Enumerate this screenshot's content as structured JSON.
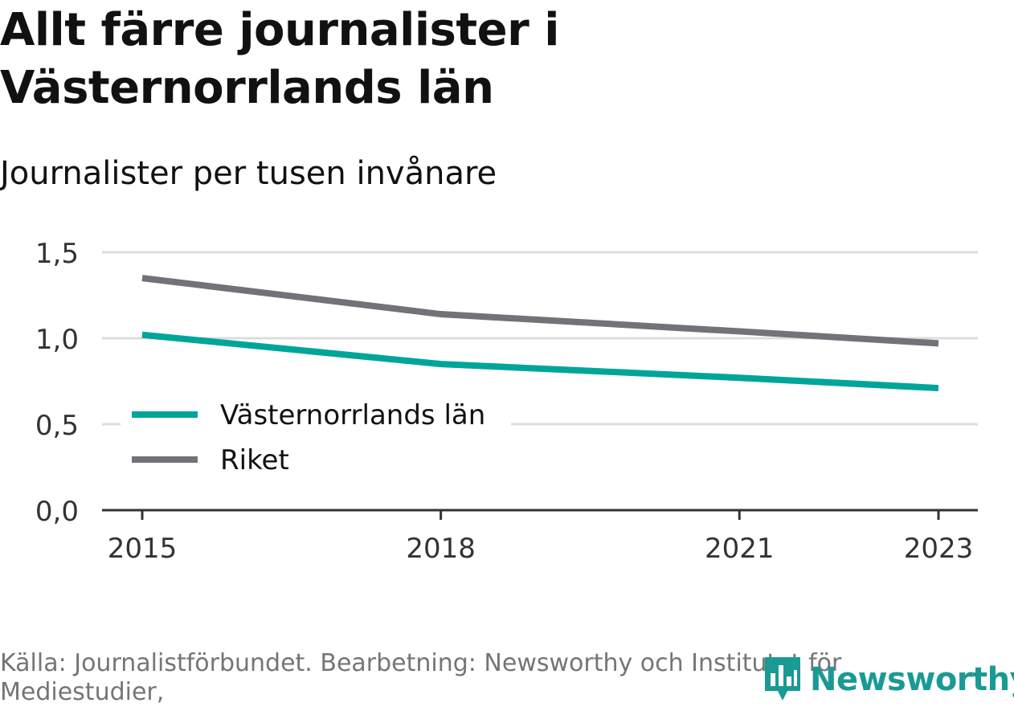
{
  "title": "Allt färre journalister i Västernorrlands län",
  "subtitle": "Journalister per tusen invånare",
  "source": "Källa: Journalistförbundet. Bearbetning: Newsworthy och Institutet för Mediestudier,",
  "logo": {
    "text": "Newsworthy",
    "icon": "newsworthy-bar-chart-icon"
  },
  "colors": {
    "vasternorrland": "#00a59a",
    "riket": "#727279",
    "grid": "#dddddd",
    "axis": "#333333",
    "brand": "#1a9a94"
  },
  "chart_data": {
    "type": "line",
    "title": "Allt färre journalister i Västernorrlands län",
    "subtitle": "Journalister per tusen invånare",
    "xlabel": "",
    "ylabel": "",
    "x": [
      2015,
      2018,
      2021,
      2023
    ],
    "x_ticks": [
      "2015",
      "2018",
      "2021",
      "2023"
    ],
    "ylim": [
      0,
      1.5
    ],
    "y_ticks": [
      "0,0",
      "0,5",
      "1,0",
      "1,5"
    ],
    "grid": true,
    "legend_position": "bottom-left",
    "series": [
      {
        "name": "Västernorrlands län",
        "color": "#00a59a",
        "values": [
          1.02,
          0.85,
          0.77,
          0.71
        ]
      },
      {
        "name": "Riket",
        "color": "#727279",
        "values": [
          1.35,
          1.14,
          1.04,
          0.97
        ]
      }
    ]
  }
}
